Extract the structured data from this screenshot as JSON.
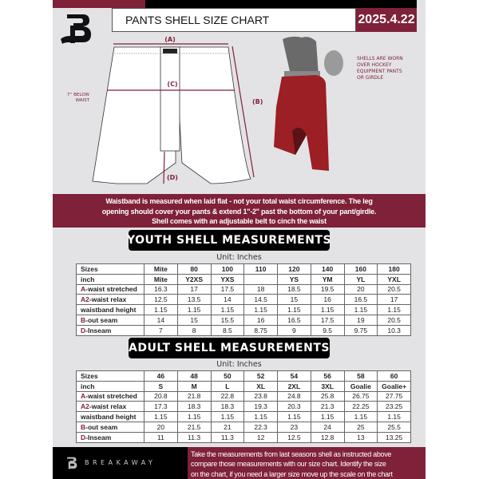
{
  "header": {
    "title": "PANTS SHELL SIZE CHART",
    "date": "2025.4.22"
  },
  "diagram": {
    "label_a": "(A)",
    "label_b": "(B)",
    "label_c": "(C)",
    "label_d": "(D)",
    "below_waist": [
      "7'' BELOW",
      "WAIST"
    ],
    "note": [
      "SHELLS ARE WORN",
      "OVER HOCKEY",
      "EQUIPMENT PANTS",
      "OR GIRDLE"
    ]
  },
  "info_band": [
    "Waistband is measured when laid flat - not your total waist circumference. The leg",
    "opening should cover your pants & extend 1''-2'' past the bottom of your pant/girdle.",
    "Shell comes with an adjustable belt to cinch the waist"
  ],
  "youth": {
    "heading": "YOUTH SHELL MEASUREMENTS",
    "unit": "Unit: Inches",
    "rows": [
      {
        "p": "",
        "l": "Sizes",
        "v": [
          "Mite",
          "80",
          "100",
          "110",
          "120",
          "140",
          "160",
          "180"
        ]
      },
      {
        "p": "",
        "l": "inch",
        "v": [
          "Mite",
          "Y2XS",
          "YXS",
          "",
          "YS",
          "YM",
          "YL",
          "YXL"
        ]
      },
      {
        "p": "A",
        "l": "-waist stretched",
        "v": [
          "16.3",
          "17",
          "17.5",
          "18",
          "18.5",
          "19.5",
          "20",
          "20.5"
        ]
      },
      {
        "p": "A2",
        "l": "-waist relax",
        "v": [
          "12.5",
          "13.5",
          "14",
          "14.5",
          "15",
          "16",
          "16.5",
          "17"
        ]
      },
      {
        "p": "",
        "l": "waistband height",
        "v": [
          "1.15",
          "1.15",
          "1.15",
          "1.15",
          "1.15",
          "1.15",
          "1.15",
          "1.15"
        ]
      },
      {
        "p": "B",
        "l": "-out seam",
        "v": [
          "14",
          "15",
          "15.5",
          "16",
          "16.5",
          "17.5",
          "19",
          "20.5"
        ]
      },
      {
        "p": "D",
        "l": "-Inseam",
        "v": [
          "7",
          "8",
          "8.5",
          "8.75",
          "9",
          "9.5",
          "9.75",
          "10.3"
        ]
      }
    ]
  },
  "adult": {
    "heading": "ADULT SHELL MEASUREMENTS",
    "unit": "Unit: Inches",
    "rows": [
      {
        "p": "",
        "l": "Sizes",
        "v": [
          "46",
          "48",
          "50",
          "52",
          "54",
          "56",
          "58",
          "60"
        ]
      },
      {
        "p": "",
        "l": "inch",
        "v": [
          "S",
          "M",
          "L",
          "XL",
          "2XL",
          "3XL",
          "Goalie",
          "Goalie+"
        ]
      },
      {
        "p": "A",
        "l": "-waist stretched",
        "v": [
          "20.8",
          "21.8",
          "22.8",
          "23.8",
          "24.8",
          "25.8",
          "26.75",
          "27.75"
        ]
      },
      {
        "p": "A2",
        "l": "-waist relax",
        "v": [
          "17.3",
          "18.3",
          "18.3",
          "19.3",
          "20.3",
          "21.3",
          "22.25",
          "23.25"
        ]
      },
      {
        "p": "",
        "l": "waistband height",
        "v": [
          "1.15",
          "1.15",
          "1.15",
          "1.15",
          "1.15",
          "1.15",
          "1.15",
          "1.15"
        ]
      },
      {
        "p": "B",
        "l": "-out seam",
        "v": [
          "20",
          "21.5",
          "21",
          "22.3",
          "23",
          "24",
          "25",
          "25.5"
        ]
      },
      {
        "p": "D",
        "l": "-Inseam",
        "v": [
          "11",
          "11.3",
          "11.3",
          "12",
          "12.5",
          "12.8",
          "13",
          "13.25"
        ]
      }
    ]
  },
  "footer": {
    "brand": "BREAKAWAY",
    "text": [
      "Take the measurements from last seasons shell as instructed above",
      "compare those measurements  with our size chart. Identify the size",
      "on the chart, if you need a larger size move up the scale on the chart"
    ]
  },
  "colors": {
    "maroon": "#7f2139",
    "black": "#000000",
    "panel": "#e3e3e6"
  }
}
